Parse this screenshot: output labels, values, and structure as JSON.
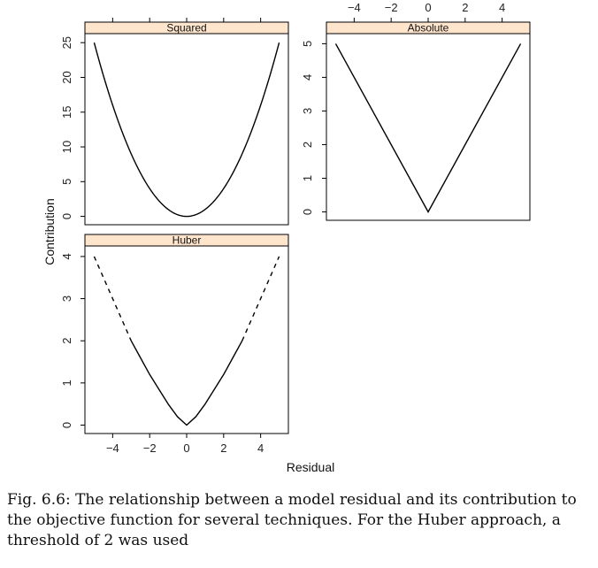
{
  "chart_data": [
    {
      "type": "line",
      "panel": "Squared",
      "strip_label": "Squared",
      "x": [
        -5,
        -4,
        -3,
        -2,
        -1,
        0,
        1,
        2,
        3,
        4,
        5
      ],
      "y": [
        25,
        16,
        9,
        4,
        1,
        0,
        1,
        4,
        9,
        16,
        25
      ],
      "xlim": [
        -5.5,
        5.5
      ],
      "ylim": [
        -1.2,
        26.3
      ],
      "xticks": [
        -4,
        -2,
        0,
        2,
        4
      ],
      "yticks": [
        0,
        5,
        10,
        15,
        20,
        25
      ],
      "ytick_labels": [
        "0",
        "5",
        "10",
        "15",
        "20",
        "25"
      ],
      "color": "#000000"
    },
    {
      "type": "line",
      "panel": "Absolute",
      "strip_label": "Absolute",
      "x": [
        -5,
        0,
        5
      ],
      "y": [
        5,
        0,
        5
      ],
      "xlim": [
        -5.5,
        5.5
      ],
      "ylim": [
        -0.25,
        5.3
      ],
      "xticks": [
        -4,
        -2,
        0,
        2,
        4
      ],
      "xtick_labels": [
        "−4",
        "−2",
        "0",
        "2",
        "4"
      ],
      "yticks": [
        0,
        1,
        2,
        3,
        4,
        5
      ],
      "ytick_labels": [
        "0",
        "1",
        "2",
        "3",
        "4",
        "5"
      ],
      "color": "#000000"
    },
    {
      "type": "line",
      "panel": "Huber",
      "strip_label": "Huber",
      "threshold": 2,
      "series": [
        {
          "style": "dashed",
          "x": [
            -5,
            -3
          ],
          "y": [
            4,
            2
          ]
        },
        {
          "style": "solid",
          "x": [
            -3,
            -2.5,
            -2,
            -1.5,
            -1,
            -0.5,
            0,
            0.5,
            1,
            1.5,
            2,
            2.5,
            3
          ],
          "y": [
            2,
            1.6,
            1.2,
            0.85,
            0.5,
            0.2,
            0,
            0.2,
            0.5,
            0.85,
            1.2,
            1.6,
            2
          ]
        },
        {
          "style": "dashed",
          "x": [
            3,
            5
          ],
          "y": [
            2,
            4
          ]
        }
      ],
      "xlim": [
        -5.5,
        5.5
      ],
      "ylim": [
        -0.2,
        4.25
      ],
      "xticks": [
        -4,
        -2,
        0,
        2,
        4
      ],
      "xtick_labels": [
        "−4",
        "−2",
        "0",
        "2",
        "4"
      ],
      "yticks": [
        0,
        1,
        2,
        3,
        4
      ],
      "ytick_labels": [
        "0",
        "1",
        "2",
        "3",
        "4"
      ],
      "color": "#000000"
    }
  ],
  "axes": {
    "xlabel": "Residual",
    "ylabel": "Contribution"
  },
  "colors": {
    "strip_fill": "#ffe5cc",
    "frame": "#000000",
    "line": "#000000"
  },
  "caption": "Fig. 6.6: The relationship between a model residual and its contribution to the objective function for several techniques. For the Huber approach, a threshold of 2 was used"
}
